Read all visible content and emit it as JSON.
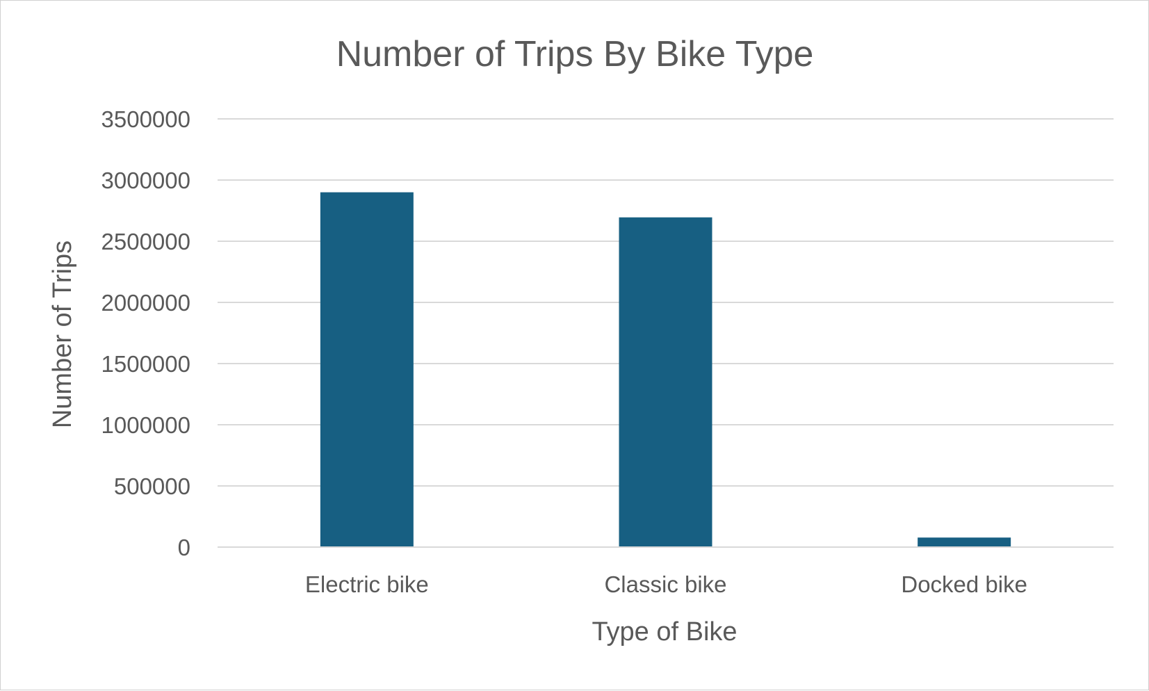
{
  "chart_data": {
    "type": "bar",
    "title": "Number of Trips By Bike Type",
    "xlabel": "Type of Bike",
    "ylabel": "Number of  Trips",
    "categories": [
      "Electric bike",
      "Classic bike",
      "Docked bike"
    ],
    "values": [
      2900000,
      2695000,
      78000
    ],
    "ylim": [
      0,
      3500000
    ],
    "yticks": [
      "0",
      "500000",
      "1000000",
      "1500000",
      "2000000",
      "2500000",
      "3000000",
      "3500000"
    ],
    "grid": true,
    "legend": "none",
    "bar_color": "#175f82"
  }
}
